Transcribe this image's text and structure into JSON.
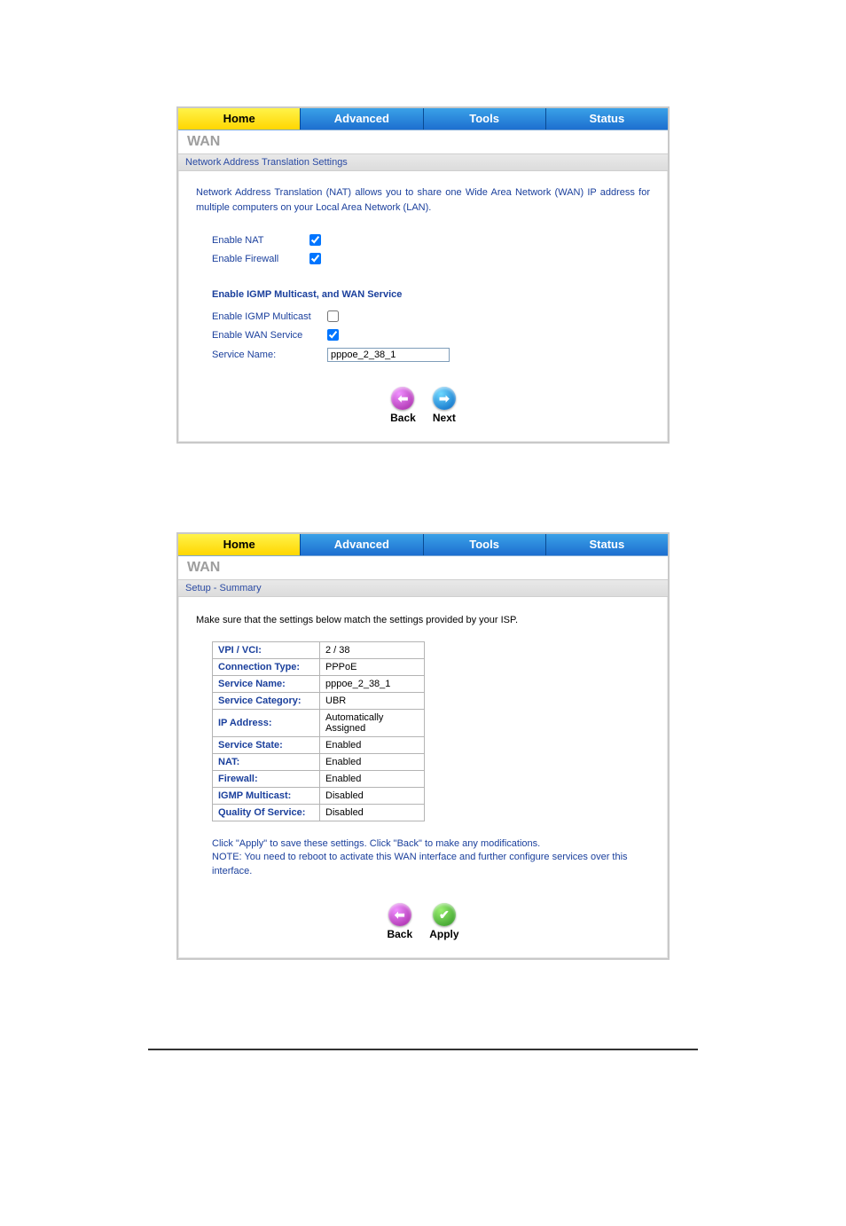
{
  "tabs": {
    "home": "Home",
    "advanced": "Advanced",
    "tools": "Tools",
    "status": "Status"
  },
  "panel1": {
    "section_title": "WAN",
    "subbar": "Network Address Translation Settings",
    "description": "Network Address Translation (NAT) allows you to share one Wide Area Network (WAN) IP address for multiple computers on your Local Area Network (LAN).",
    "labels": {
      "enable_nat": "Enable NAT",
      "enable_firewall": "Enable Firewall",
      "section_igmp": "Enable IGMP Multicast, and WAN Service",
      "enable_igmp": "Enable IGMP Multicast",
      "enable_wan": "Enable WAN Service",
      "service_name": "Service Name:"
    },
    "values": {
      "enable_nat": true,
      "enable_firewall": true,
      "enable_igmp": false,
      "enable_wan": true,
      "service_name": "pppoe_2_38_1"
    },
    "buttons": {
      "back": "Back",
      "next": "Next"
    }
  },
  "panel2": {
    "section_title": "WAN",
    "subbar": "Setup - Summary",
    "description": "Make sure that the settings below match the settings provided by your ISP.",
    "rows": [
      {
        "label": "VPI / VCI:",
        "value": "2 / 38"
      },
      {
        "label": "Connection Type:",
        "value": "PPPoE"
      },
      {
        "label": "Service Name:",
        "value": "pppoe_2_38_1"
      },
      {
        "label": "Service Category:",
        "value": "UBR"
      },
      {
        "label": "IP Address:",
        "value": "Automatically Assigned"
      },
      {
        "label": "Service State:",
        "value": "Enabled"
      },
      {
        "label": "NAT:",
        "value": "Enabled"
      },
      {
        "label": "Firewall:",
        "value": "Enabled"
      },
      {
        "label": "IGMP Multicast:",
        "value": "Disabled"
      },
      {
        "label": "Quality Of Service:",
        "value": "Disabled"
      }
    ],
    "note_line1": "Click \"Apply\" to save these settings. Click \"Back\" to make any modifications.",
    "note_line2": "NOTE: You need to reboot to activate this WAN interface and further configure services over this interface.",
    "buttons": {
      "back": "Back",
      "apply": "Apply"
    }
  },
  "colors": {
    "tab_active_bg": "#ffd600",
    "tab_inactive_bg": "#1d6fd0",
    "link_color": "#1a3f9c",
    "border_gray": "#c9c9c9"
  }
}
